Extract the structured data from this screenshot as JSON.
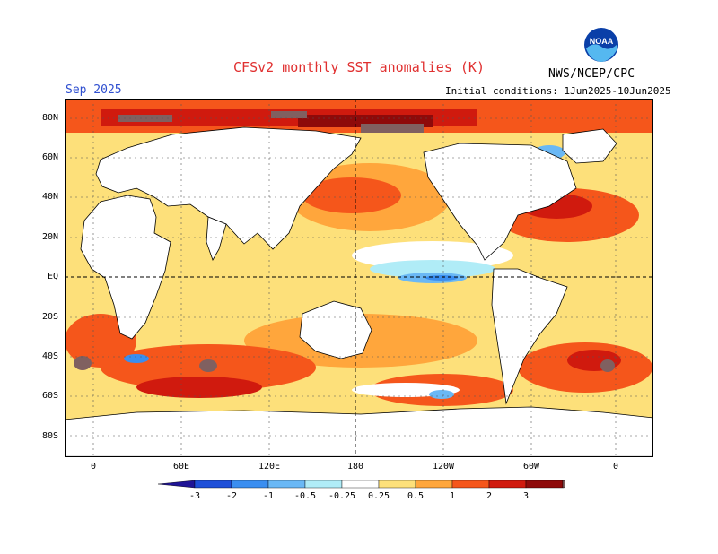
{
  "header": {
    "title": "CFSv2 monthly SST anomalies (K)",
    "org": "NWS/NCEP/CPC",
    "month": "Sep 2025",
    "init": "Initial conditions: 1Jun2025-10Jun2025",
    "logo_text": "NOAA"
  },
  "axes": {
    "lat_labels": [
      "80N",
      "60N",
      "40N",
      "20N",
      "EQ",
      "20S",
      "40S",
      "60S",
      "80S"
    ],
    "lon_labels": [
      "0",
      "60E",
      "120E",
      "180",
      "120W",
      "60W",
      "0"
    ]
  },
  "colorbar": {
    "labels": [
      "-3",
      "-2",
      "-1",
      "-0.5",
      "-0.25",
      "0.25",
      "0.5",
      "1",
      "2",
      "3"
    ],
    "colors": [
      "#1f1496",
      "#1e4fd8",
      "#3a8ef0",
      "#6ab8f5",
      "#b0ecf7",
      "#ffffff",
      "#fde07a",
      "#ffa63c",
      "#f5561b",
      "#d01a0e",
      "#8e0a0a",
      "#806060"
    ]
  },
  "colors": {
    "land": "#ffffff",
    "ocean_base": "#fde07a",
    "title": "#e03030",
    "month": "#2f4fd0"
  }
}
